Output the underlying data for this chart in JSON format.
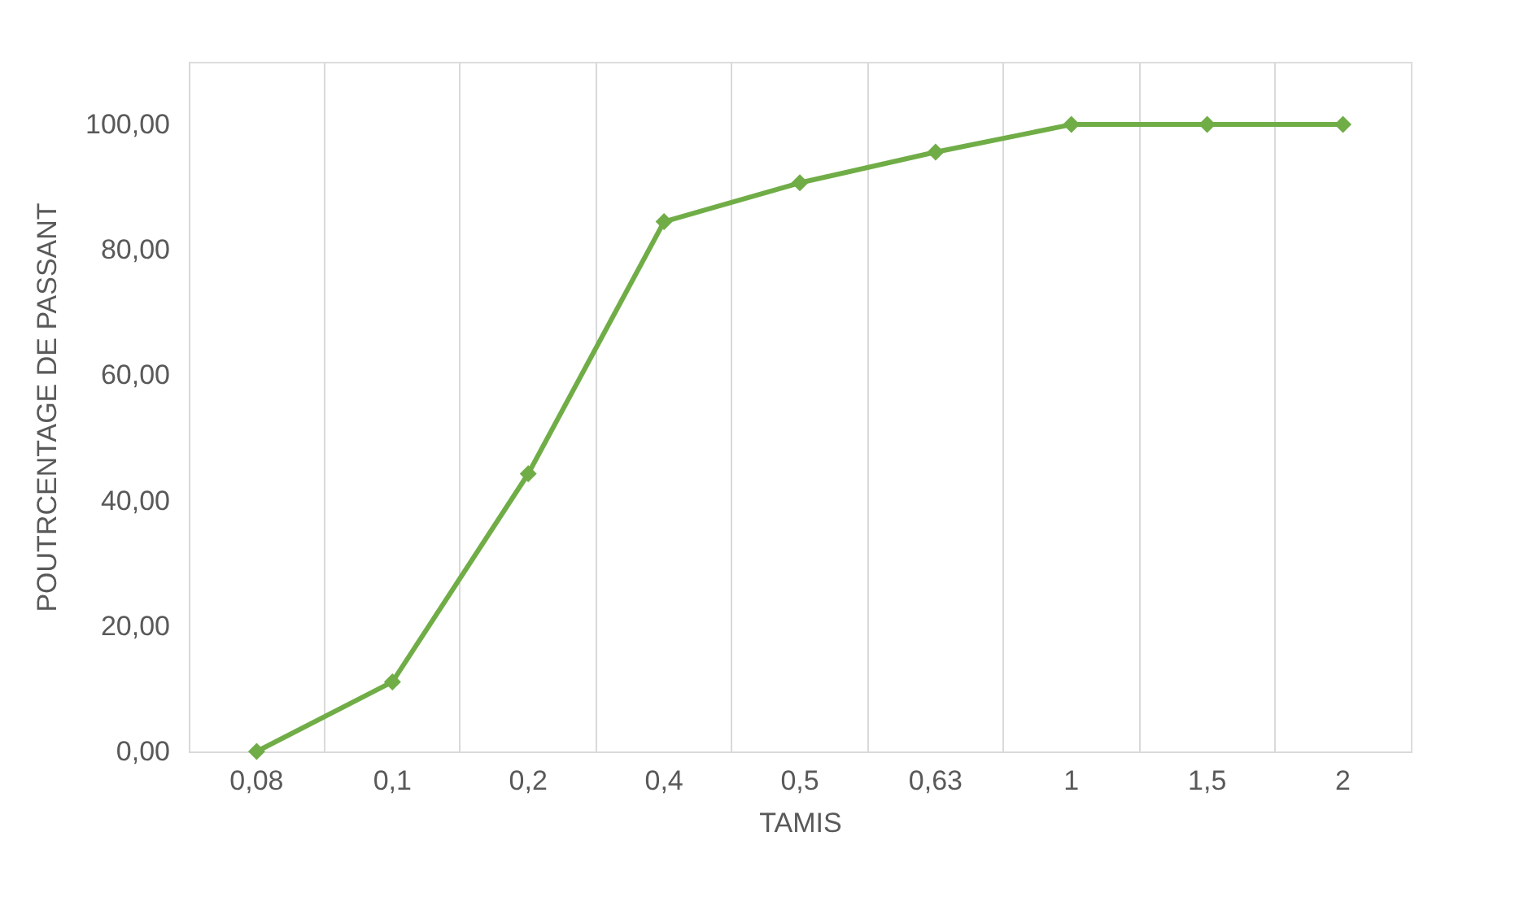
{
  "chart_data": {
    "type": "line",
    "xlabel": "TAMIS",
    "ylabel": "POUTRCENTAGE DE PASSANT",
    "categories": [
      "0,08",
      "0,1",
      "0,2",
      "0,4",
      "0,5",
      "0,63",
      "1",
      "1,5",
      "2"
    ],
    "series": [
      {
        "color": "#70ad47",
        "values": [
          0,
          11.1,
          44.3,
          84.5,
          90.7,
          95.6,
          100,
          100,
          100
        ]
      }
    ],
    "ylim": [
      0,
      110
    ],
    "yticks": [
      {
        "value": 0,
        "label": "0,00"
      },
      {
        "value": 20,
        "label": "20,00"
      },
      {
        "value": 40,
        "label": "40,00"
      },
      {
        "value": 60,
        "label": "60,00"
      },
      {
        "value": 80,
        "label": "80,00"
      },
      {
        "value": 100,
        "label": "100,00"
      }
    ],
    "grid": "x",
    "marker": "diamond",
    "line_style": "solid"
  }
}
